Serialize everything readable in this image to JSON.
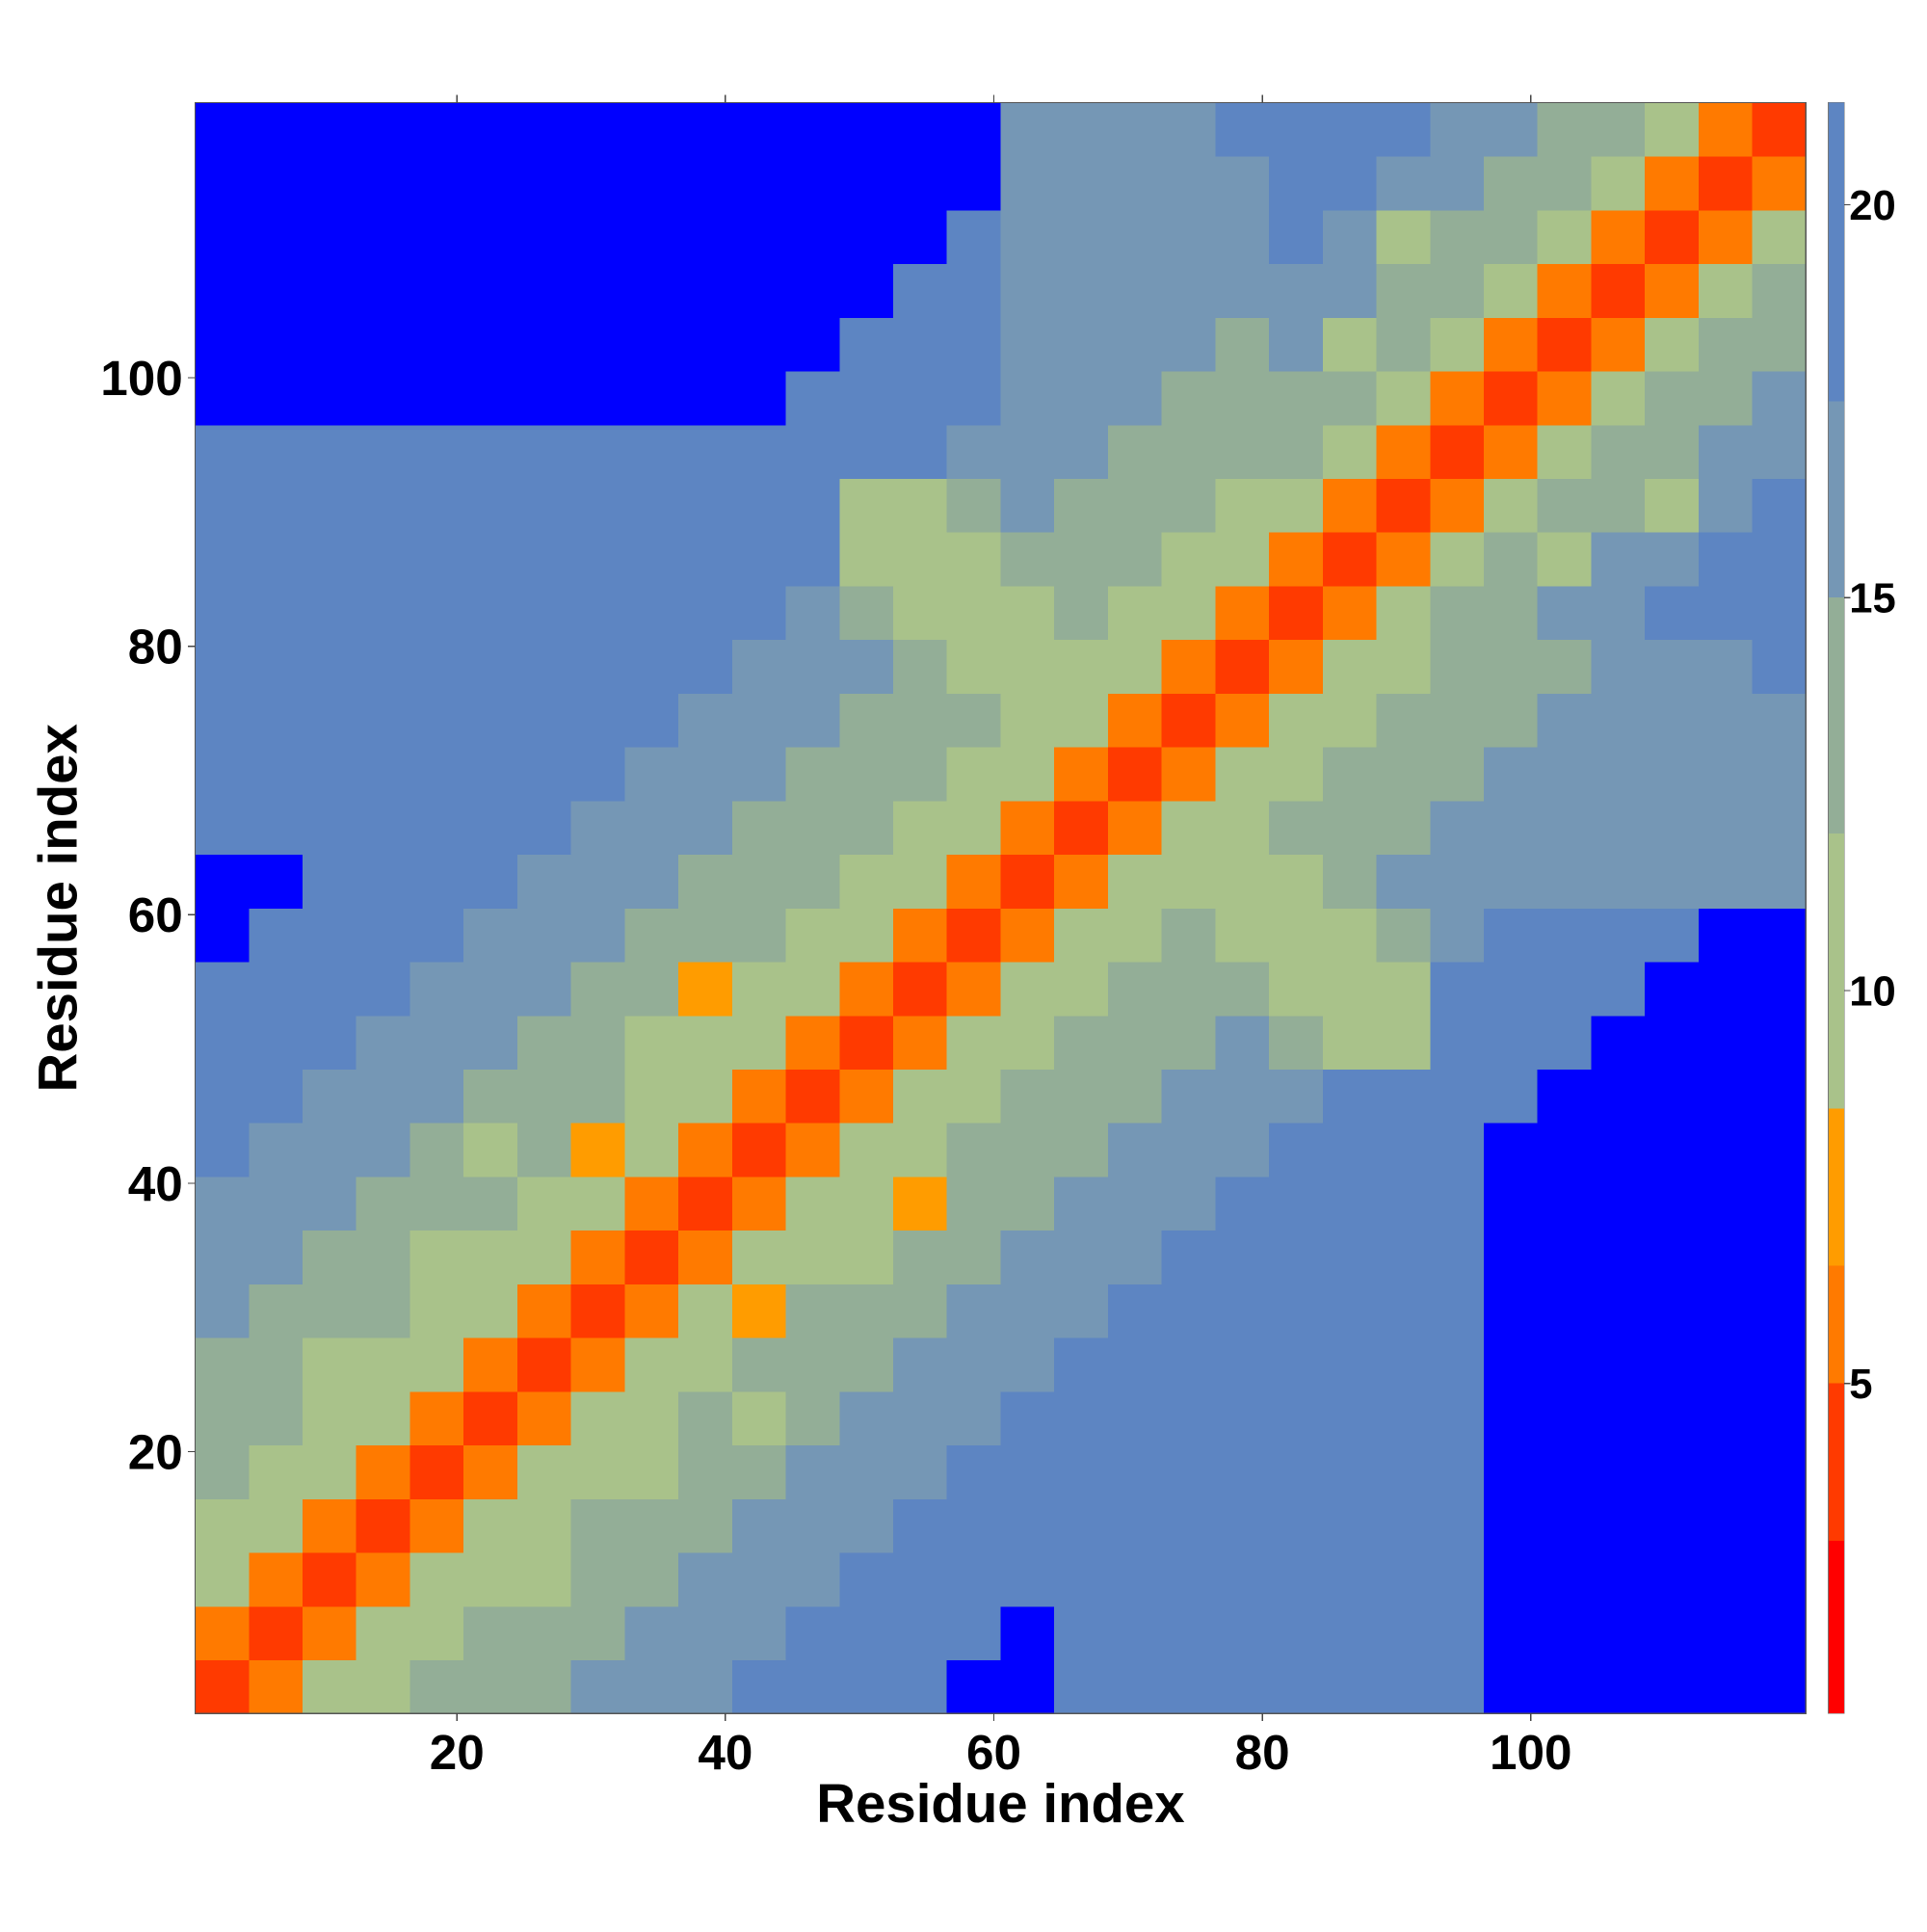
{
  "chart_data": {
    "type": "heatmap",
    "x_label": "Residue index",
    "y_label": "Residue index",
    "x": [
      2.5,
      6.5,
      10.5,
      14.5,
      18.5,
      22.5,
      26.5,
      30.5,
      34.5,
      38.5,
      42.5,
      46.5,
      50.5,
      54.5,
      58.5,
      62.5,
      66.5,
      70.5,
      74.5,
      78.5,
      82.5,
      86.5,
      90.5,
      94.5,
      98.5,
      102.5,
      106.5,
      110.5,
      114.5,
      118.5
    ],
    "y": [
      2.5,
      6.5,
      10.5,
      14.5,
      18.5,
      22.5,
      26.5,
      30.5,
      34.5,
      38.5,
      42.5,
      46.5,
      50.5,
      54.5,
      58.5,
      62.5,
      66.5,
      70.5,
      74.5,
      78.5,
      82.5,
      86.5,
      90.5,
      94.5,
      98.5,
      102.5,
      106.5,
      110.5,
      114.5,
      118.5
    ],
    "z": [
      [
        3,
        6,
        9,
        11,
        12,
        13,
        14,
        15,
        16,
        17,
        18,
        19,
        20,
        21,
        22,
        23,
        19,
        19,
        19,
        19,
        19,
        19,
        19,
        19,
        23,
        23,
        23,
        23,
        23,
        23
      ],
      [
        6,
        3,
        6,
        9,
        11,
        12,
        13,
        14,
        15,
        16,
        17,
        18,
        19,
        20,
        21,
        22,
        19,
        19,
        19,
        19,
        19,
        19,
        19,
        19,
        23,
        23,
        23,
        23,
        23,
        23
      ],
      [
        9,
        6,
        3,
        6,
        9,
        11,
        10,
        13,
        14,
        15,
        16,
        17,
        18,
        19,
        20,
        21,
        19,
        19,
        19,
        19,
        19,
        19,
        19,
        19,
        23,
        23,
        23,
        23,
        23,
        23
      ],
      [
        11,
        9,
        6,
        3,
        6,
        9,
        11,
        12,
        13,
        14,
        15,
        16,
        17,
        18,
        19,
        20,
        19,
        19,
        19,
        19,
        19,
        19,
        19,
        19,
        23,
        23,
        23,
        23,
        23,
        23
      ],
      [
        12,
        11,
        9,
        6,
        3,
        6,
        9,
        11,
        9,
        13,
        14,
        15,
        16,
        17,
        18,
        19,
        19,
        19,
        19,
        19,
        19,
        19,
        19,
        19,
        23,
        23,
        23,
        23,
        23,
        23
      ],
      [
        13,
        12,
        11,
        9,
        6,
        3,
        6,
        9,
        11,
        12,
        10,
        14,
        15,
        16,
        17,
        18,
        19,
        19,
        19,
        19,
        19,
        19,
        19,
        19,
        23,
        23,
        23,
        23,
        23,
        23
      ],
      [
        14,
        13,
        10,
        11,
        9,
        6,
        3,
        6,
        9,
        11,
        12,
        13,
        14,
        15,
        16,
        17,
        18,
        19,
        20,
        21,
        19,
        19,
        19,
        19,
        23,
        23,
        23,
        23,
        23,
        23
      ],
      [
        15,
        14,
        13,
        12,
        11,
        9,
        6,
        3,
        6,
        9,
        8,
        12,
        13,
        14,
        15,
        16,
        17,
        18,
        19,
        20,
        19,
        19,
        19,
        19,
        23,
        23,
        23,
        23,
        23,
        23
      ],
      [
        16,
        15,
        14,
        13,
        9,
        11,
        9,
        6,
        3,
        6,
        9,
        11,
        9,
        13,
        14,
        15,
        16,
        17,
        18,
        19,
        19,
        19,
        19,
        19,
        23,
        23,
        23,
        23,
        23,
        23
      ],
      [
        17,
        16,
        15,
        14,
        13,
        12,
        11,
        9,
        6,
        3,
        6,
        9,
        11,
        8,
        13,
        14,
        15,
        16,
        17,
        18,
        19,
        19,
        19,
        19,
        23,
        23,
        23,
        23,
        23,
        23
      ],
      [
        18,
        17,
        16,
        15,
        14,
        10,
        12,
        8,
        9,
        6,
        3,
        6,
        9,
        11,
        12,
        13,
        14,
        15,
        16,
        17,
        18,
        19,
        20,
        21,
        22,
        23,
        23,
        23,
        23,
        23
      ],
      [
        19,
        18,
        17,
        16,
        15,
        14,
        13,
        12,
        11,
        9,
        6,
        3,
        6,
        9,
        11,
        12,
        13,
        14,
        15,
        16,
        17,
        18,
        19,
        20,
        21,
        22,
        23,
        23,
        23,
        23
      ],
      [
        20,
        19,
        18,
        17,
        16,
        15,
        14,
        13,
        9,
        11,
        9,
        6,
        3,
        6,
        9,
        11,
        12,
        13,
        14,
        15,
        13,
        11,
        9,
        19,
        20,
        21,
        22,
        23,
        23,
        23
      ],
      [
        21,
        20,
        19,
        18,
        17,
        16,
        15,
        14,
        13,
        8,
        11,
        9,
        6,
        3,
        6,
        9,
        11,
        12,
        13,
        13,
        11,
        9,
        11,
        18,
        19,
        20,
        21,
        22,
        23,
        23
      ],
      [
        22,
        21,
        20,
        19,
        18,
        17,
        16,
        15,
        14,
        13,
        12,
        11,
        9,
        6,
        3,
        6,
        9,
        11,
        12,
        11,
        9,
        11,
        13,
        17,
        18,
        19,
        20,
        21,
        22,
        23
      ],
      [
        23,
        22,
        21,
        20,
        19,
        18,
        17,
        16,
        15,
        14,
        13,
        12,
        11,
        9,
        6,
        3,
        6,
        9,
        11,
        9,
        11,
        13,
        15,
        16,
        17,
        17,
        17,
        17,
        17,
        17
      ],
      [
        19,
        19,
        19,
        19,
        19,
        19,
        18,
        17,
        16,
        15,
        14,
        13,
        12,
        11,
        9,
        6,
        3,
        6,
        9,
        11,
        12,
        13,
        14,
        15,
        16,
        17,
        17,
        17,
        17,
        17
      ],
      [
        19,
        19,
        19,
        19,
        19,
        19,
        19,
        18,
        17,
        16,
        15,
        14,
        13,
        12,
        11,
        9,
        6,
        3,
        6,
        9,
        11,
        12,
        13,
        14,
        15,
        16,
        17,
        17,
        17,
        17
      ],
      [
        19,
        19,
        19,
        19,
        19,
        19,
        20,
        19,
        18,
        17,
        16,
        15,
        14,
        13,
        12,
        11,
        9,
        6,
        3,
        6,
        9,
        11,
        12,
        13,
        14,
        15,
        16,
        17,
        17,
        17
      ],
      [
        19,
        19,
        19,
        19,
        19,
        19,
        21,
        20,
        19,
        18,
        17,
        16,
        15,
        13,
        11,
        9,
        11,
        9,
        6,
        3,
        6,
        9,
        11,
        12,
        13,
        14,
        15,
        16,
        17,
        18
      ],
      [
        19,
        19,
        19,
        19,
        19,
        19,
        19,
        19,
        19,
        19,
        18,
        17,
        13,
        11,
        9,
        11,
        12,
        11,
        9,
        6,
        3,
        6,
        9,
        12,
        14,
        16,
        17,
        18,
        19,
        19
      ],
      [
        19,
        19,
        19,
        19,
        19,
        19,
        19,
        19,
        19,
        19,
        19,
        18,
        11,
        9,
        11,
        13,
        13,
        12,
        11,
        9,
        6,
        3,
        6,
        9,
        12,
        11,
        16,
        17,
        18,
        19
      ],
      [
        19,
        19,
        19,
        19,
        19,
        19,
        19,
        19,
        19,
        19,
        20,
        19,
        9,
        11,
        13,
        15,
        14,
        13,
        12,
        11,
        9,
        6,
        3,
        6,
        9,
        12,
        14,
        10,
        17,
        18
      ],
      [
        19,
        19,
        19,
        19,
        19,
        19,
        19,
        19,
        19,
        19,
        21,
        20,
        19,
        18,
        17,
        16,
        15,
        14,
        13,
        12,
        12,
        9,
        6,
        3,
        6,
        9,
        12,
        14,
        16,
        17
      ],
      [
        23,
        23,
        23,
        23,
        23,
        23,
        23,
        23,
        23,
        23,
        22,
        21,
        20,
        19,
        18,
        17,
        16,
        15,
        14,
        13,
        14,
        12,
        9,
        6,
        3,
        6,
        9,
        12,
        12,
        16
      ],
      [
        23,
        23,
        23,
        23,
        23,
        23,
        23,
        23,
        23,
        23,
        23,
        22,
        21,
        20,
        19,
        17,
        17,
        16,
        15,
        14,
        16,
        11,
        12,
        9,
        6,
        3,
        6,
        9,
        12,
        14
      ],
      [
        23,
        23,
        23,
        23,
        23,
        23,
        23,
        23,
        23,
        23,
        23,
        23,
        22,
        21,
        20,
        17,
        17,
        17,
        16,
        15,
        17,
        16,
        14,
        12,
        9,
        6,
        3,
        6,
        9,
        12
      ],
      [
        23,
        23,
        23,
        23,
        23,
        23,
        23,
        23,
        23,
        23,
        23,
        23,
        23,
        22,
        21,
        17,
        17,
        17,
        17,
        16,
        18,
        17,
        10,
        14,
        12,
        9,
        6,
        3,
        6,
        9
      ],
      [
        23,
        23,
        23,
        23,
        23,
        23,
        23,
        23,
        23,
        23,
        23,
        23,
        23,
        23,
        22,
        17,
        17,
        17,
        17,
        17,
        19,
        18,
        17,
        16,
        12,
        12,
        9,
        6,
        3,
        6
      ],
      [
        23,
        23,
        23,
        23,
        23,
        23,
        23,
        23,
        23,
        23,
        23,
        23,
        23,
        23,
        23,
        17,
        17,
        17,
        17,
        18,
        19,
        19,
        18,
        17,
        16,
        14,
        12,
        9,
        6,
        3
      ]
    ],
    "xlim": [
      0.5,
      120.5
    ],
    "ylim": [
      0.5,
      120.5
    ],
    "xticks": [
      20,
      40,
      60,
      80,
      100
    ],
    "yticks": [
      20,
      40,
      60,
      80,
      100
    ],
    "clim": [
      0.8,
      21.3
    ],
    "cticks": [
      5,
      10,
      15,
      20
    ],
    "color_stops": [
      [
        0.8,
        "#ff0000"
      ],
      [
        3,
        "#ff3a00"
      ],
      [
        5,
        "#ff7a00"
      ],
      [
        6.5,
        "#ff9c00"
      ],
      [
        8.5,
        "#a9c28a"
      ],
      [
        12,
        "#93ae97"
      ],
      [
        15,
        "#7597b5"
      ],
      [
        17.5,
        "#5d85c2"
      ],
      [
        21.3,
        "#0000ff"
      ]
    ]
  }
}
